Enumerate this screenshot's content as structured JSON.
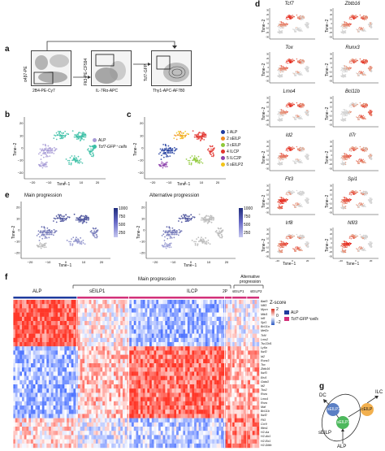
{
  "panels": {
    "a": "a",
    "b": "b",
    "c": "c",
    "d": "d",
    "e": "e",
    "f": "f",
    "g": "g"
  },
  "panel_a": {
    "plots": [
      {
        "ylabel": "α4β7-PE",
        "xlabel": "2B4-PE-Cy7"
      },
      {
        "ylabel": "Flt3-PE-CF594",
        "xlabel": "IL-7Rα-APC"
      },
      {
        "ylabel": "Tcf7-GFP",
        "xlabel": "Thy1-APC-AF780"
      }
    ]
  },
  "panel_b": {
    "legend": [
      {
        "name": "ALP",
        "color": "#a79bd6"
      },
      {
        "name": "Tcf7-GFP⁺ cells",
        "color": "#3bbfa6"
      }
    ],
    "xlabel": "Tsne−1",
    "ylabel": "Tsne−2",
    "xticks": [
      "−20",
      "−10",
      "0",
      "10",
      "20"
    ],
    "yticks": [
      "20",
      "10",
      "0",
      "−10",
      "−20"
    ]
  },
  "panel_c": {
    "legend": [
      {
        "name": "1 ALP",
        "color": "#1f3b9e"
      },
      {
        "name": "2 sEILP",
        "color": "#f08a24"
      },
      {
        "name": "3 cEILP",
        "color": "#8fc93a"
      },
      {
        "name": "4 ILCP",
        "color": "#e2352f"
      },
      {
        "name": "5 ILC2P",
        "color": "#8e44ad"
      },
      {
        "name": "6 sEILP2",
        "color": "#f2c418"
      }
    ],
    "xlabel": "Tsne−1",
    "ylabel": "Tsne−2",
    "xticks": [
      "−20",
      "−10",
      "0",
      "10",
      "20"
    ],
    "yticks": [
      "20",
      "10",
      "0",
      "−10",
      "−20"
    ]
  },
  "panel_d": {
    "genes": [
      "Tcf7",
      "Zbtb16",
      "Tox",
      "Runx3",
      "Lmo4",
      "Bcl11b",
      "Id2",
      "Il7r",
      "Flt3",
      "Spi1",
      "Irf8",
      "Nfil3"
    ],
    "xlabel": "Tsne−1",
    "ylabel": "Tsne−2",
    "xticks": [
      "−20",
      "0",
      "20"
    ],
    "yticks": [
      "30",
      "20",
      "10",
      "0",
      "−10",
      "−20",
      "−30"
    ]
  },
  "panel_e": {
    "plots": [
      {
        "title": "Main progression"
      },
      {
        "title": "Alternative progression"
      }
    ],
    "colorbar_ticks": [
      "1000",
      "750",
      "500",
      "250"
    ],
    "xlabel": "Tsne−1",
    "ylabel": "Tsne−2",
    "xticks": [
      "−20",
      "−10",
      "0",
      "10",
      "20"
    ],
    "yticks": [
      "20",
      "10",
      "0",
      "−10",
      "−20"
    ]
  },
  "panel_f": {
    "header_main": "Main progression",
    "header_alt": "Alternative progression",
    "groups": [
      "ALP",
      "sEILP1",
      "ILCP",
      "2P",
      "sEILP1",
      "sEILP2"
    ],
    "legend_title": "Z-score",
    "legend_scale": [
      "2",
      "0",
      "−2"
    ],
    "legend_cells": [
      {
        "name": "ALP",
        "color": "#1f3b9e"
      },
      {
        "name": "Tcf7-GFP⁺cells",
        "color": "#d3317a"
      }
    ],
    "genes": [
      "Batf3",
      "Nfil3",
      "Mycn",
      "Mlkl1",
      "Irf8",
      "Spi1",
      "Bcl11a",
      "Mef2c",
      "Tcf4",
      "Lmo2",
      "Tsc22d1",
      "Ly6a",
      "Ikzf2",
      "Id2",
      "Runx3",
      "Tox",
      "Zbtb16",
      "Ikzf3",
      "Etv5",
      "Gata3",
      "Id2",
      "Tox2",
      "Rora",
      "Lmo4",
      "Rora",
      "Maf",
      "Bcl11b",
      "Ikzf2",
      "Flt3",
      "Ccr9",
      "Ifitm1",
      "H2-Aa",
      "H2-Ab1",
      "H2-Eb1",
      "H2-DMb"
    ]
  },
  "panel_g": {
    "nodes": [
      {
        "name": "sEILP2",
        "color": "#5b7fc4"
      },
      {
        "name": "cEILP",
        "color": "#f2b04e"
      },
      {
        "name": "sEILP1",
        "color": "#4db85d"
      }
    ],
    "labels": [
      "DC",
      "ILC",
      "sEILP",
      "ALP"
    ]
  }
}
